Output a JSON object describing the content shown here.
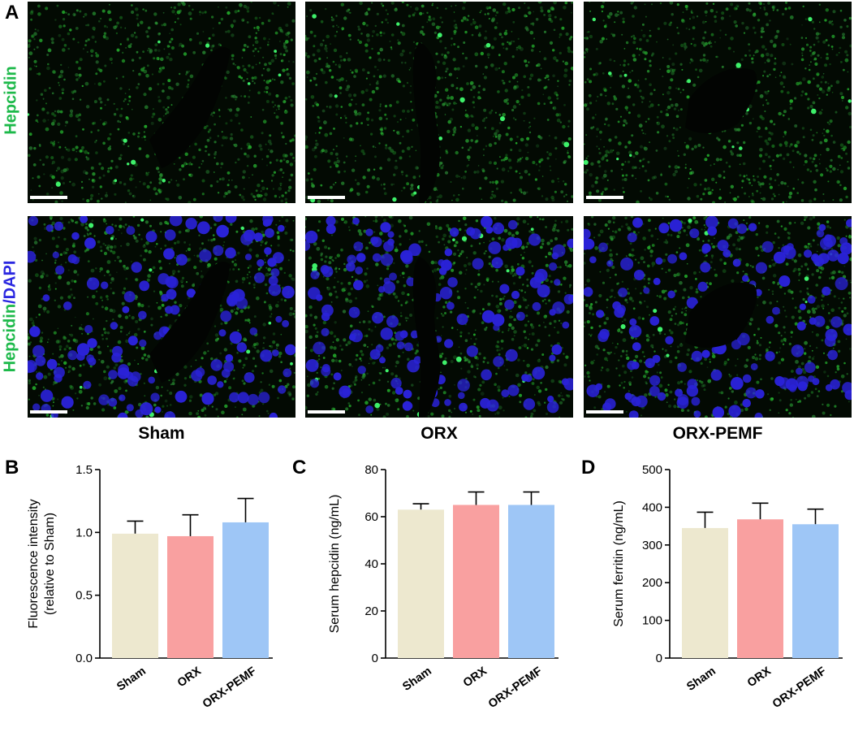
{
  "figure": {
    "panel_letters": {
      "A": "A",
      "B": "B",
      "C": "C",
      "D": "D"
    },
    "panelA": {
      "row_labels": {
        "top": "Hepcidin",
        "bottom_part1": "Hepcidin",
        "bottom_sep": "/",
        "bottom_part2": "DAPI"
      },
      "groups": [
        "Sham",
        "ORX",
        "ORX-PEMF"
      ]
    },
    "colors": {
      "sham": "#ede8cf",
      "orx": "#f9a0a0",
      "orx_pemf": "#9ec6f6",
      "hepcidin_green": "#1db94a",
      "dapi_blue": "#2a27e0"
    }
  },
  "chart_data": [
    {
      "panel": "B",
      "type": "bar",
      "categories": [
        "Sham",
        "ORX",
        "ORX-PEMF"
      ],
      "values": [
        0.99,
        0.97,
        1.08
      ],
      "errors": [
        0.1,
        0.17,
        0.19
      ],
      "ylabel_line1": "Fluorescence intensity",
      "ylabel_line2": "(relative to Sham)",
      "ylim": [
        0,
        1.5
      ],
      "yticks": [
        "0.0",
        "0.5",
        "1.0",
        "1.5"
      ],
      "ytick_values": [
        0,
        0.5,
        1.0,
        1.5
      ]
    },
    {
      "panel": "C",
      "type": "bar",
      "categories": [
        "Sham",
        "ORX",
        "ORX-PEMF"
      ],
      "values": [
        63,
        65,
        65
      ],
      "errors": [
        2.5,
        5.5,
        5.5
      ],
      "ylabel_line1": "Serum hepcidin (ng/mL)",
      "ylabel_line2": "",
      "ylim": [
        0,
        80
      ],
      "yticks": [
        "0",
        "20",
        "40",
        "60",
        "80"
      ],
      "ytick_values": [
        0,
        20,
        40,
        60,
        80
      ]
    },
    {
      "panel": "D",
      "type": "bar",
      "categories": [
        "Sham",
        "ORX",
        "ORX-PEMF"
      ],
      "values": [
        345,
        368,
        355
      ],
      "errors": [
        42,
        43,
        40
      ],
      "ylabel_line1": "Serum ferritin (ng/mL)",
      "ylabel_line2": "",
      "ylim": [
        0,
        500
      ],
      "yticks": [
        "0",
        "100",
        "200",
        "300",
        "400",
        "500"
      ],
      "ytick_values": [
        0,
        100,
        200,
        300,
        400,
        500
      ]
    }
  ]
}
